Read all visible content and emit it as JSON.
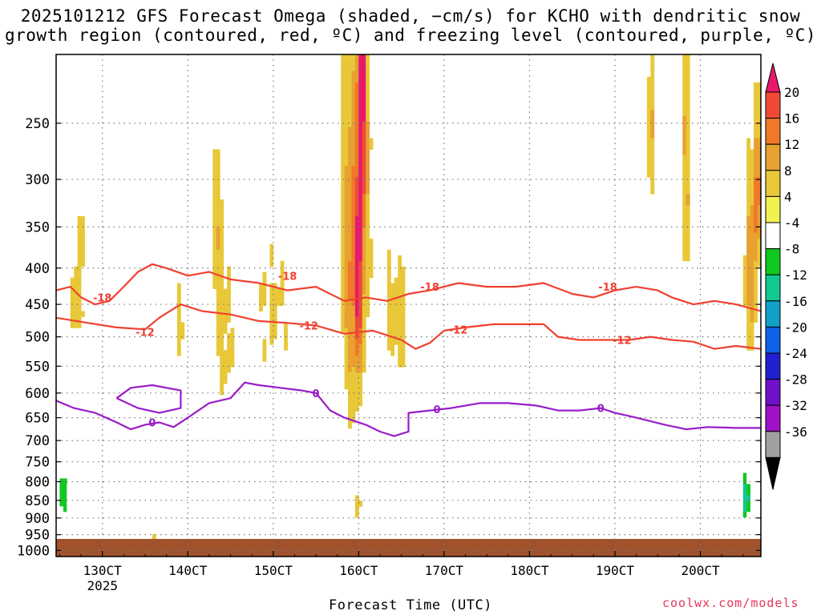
{
  "title": {
    "line1": "2025101212 GFS Forecast Omega (shaded, −cm/s) for KCHO with dendritic snow",
    "line2": "growth region (contoured, red, ºC) and freezing level (contoured, purple, ºC)"
  },
  "credit": "coolwx.com/models",
  "colors": {
    "snow_growth_contour": "#f04030",
    "freezing_level_contour": "#9a1cc8",
    "ground": "#a0522d",
    "grid": "#777777"
  },
  "chart_data": {
    "type": "heatmap",
    "title": "2025101212 GFS Forecast Omega (shaded, −cm/s) for KCHO with dendritic snow growth region (contoured, red, ºC) and freezing level (contoured, purple, ºC)",
    "xlabel": "Forecast Time (UTC)",
    "ylabel": "",
    "x_unit": "hours since 12z 12 Oct 2025",
    "xlim": [
      -1,
      197
    ],
    "ylim_hpa": [
      1020,
      200
    ],
    "y_scale": "log",
    "x_ticks": [
      {
        "label": "130CT",
        "sublabel": "2025",
        "x": 12
      },
      {
        "label": "140CT",
        "x": 36
      },
      {
        "label": "150CT",
        "x": 60
      },
      {
        "label": "160CT",
        "x": 84
      },
      {
        "label": "170CT",
        "x": 108
      },
      {
        "label": "180CT",
        "x": 132
      },
      {
        "label": "190CT",
        "x": 156
      },
      {
        "label": "200CT",
        "x": 180
      }
    ],
    "y_ticks": [
      1000,
      950,
      900,
      850,
      800,
      750,
      700,
      650,
      600,
      550,
      500,
      450,
      400,
      350,
      300,
      250
    ],
    "grid": true,
    "colorbar": {
      "levels": [
        20,
        16,
        12,
        8,
        4,
        -4,
        -8,
        -12,
        -16,
        -20,
        -24,
        -28,
        -32,
        -36
      ],
      "colors": [
        "#e8186c",
        "#f04a36",
        "#f07828",
        "#e8a030",
        "#e8c838",
        "#f0f050",
        "#ffffff",
        "#10c820",
        "#10c890",
        "#10a0c8",
        "#1060e8",
        "#2020d0",
        "#7010c8",
        "#a010c8",
        "#a0a0a0",
        "#000000"
      ]
    },
    "omega_blobs": [
      {
        "x": 84,
        "p": 330,
        "rx": 5.5,
        "rp": 260,
        "v": 6
      },
      {
        "x": 82,
        "p": 420,
        "rx": 2.5,
        "rp": 220,
        "v": 8
      },
      {
        "x": 85,
        "p": 220,
        "rx": 1.2,
        "rp": 120,
        "v": 18
      },
      {
        "x": 84,
        "p": 420,
        "rx": 1,
        "rp": 120,
        "v": 14
      },
      {
        "x": 95,
        "p": 470,
        "rx": 4,
        "rp": 120,
        "v": 6
      },
      {
        "x": 60,
        "p": 460,
        "rx": 7,
        "rp": 130,
        "v": 4.5
      },
      {
        "x": 44,
        "p": 340,
        "rx": 2,
        "rp": 80,
        "v": 6
      },
      {
        "x": 46,
        "p": 500,
        "rx": 4,
        "rp": 150,
        "v": 5
      },
      {
        "x": 34,
        "p": 470,
        "rx": 2,
        "rp": 80,
        "v": 5
      },
      {
        "x": 6,
        "p": 380,
        "rx": 2,
        "rp": 130,
        "v": 4.5
      },
      {
        "x": 4,
        "p": 460,
        "rx": 1.5,
        "rp": 60,
        "v": 5
      },
      {
        "x": 26,
        "p": 970,
        "rx": 7,
        "rp": 20,
        "v": 5
      },
      {
        "x": 84,
        "p": 870,
        "rx": 1,
        "rp": 50,
        "v": 6
      },
      {
        "x": 124,
        "p": 860,
        "rx": 1,
        "rp": 15,
        "v": 5
      },
      {
        "x": 176,
        "p": 290,
        "rx": 1,
        "rp": 120,
        "v": 10
      },
      {
        "x": 166,
        "p": 260,
        "rx": 1,
        "rp": 60,
        "v": 10
      },
      {
        "x": 194,
        "p": 400,
        "rx": 1.6,
        "rp": 120,
        "v": 12
      },
      {
        "x": 196,
        "p": 310,
        "rx": 0.8,
        "rp": 80,
        "v": 16
      },
      {
        "x": 18,
        "p": 250,
        "rx": 1,
        "rp": 80,
        "v": -5
      },
      {
        "x": 26,
        "p": 440,
        "rx": 1.5,
        "rp": 60,
        "v": -5
      },
      {
        "x": 32,
        "p": 640,
        "rx": 0.7,
        "rp": 50,
        "v": -10
      },
      {
        "x": 1,
        "p": 820,
        "rx": 1.5,
        "rp": 70,
        "v": -10
      },
      {
        "x": 4,
        "p": 870,
        "rx": 5,
        "rp": 50,
        "v": -5
      },
      {
        "x": 84,
        "p": 760,
        "rx": 2,
        "rp": 40,
        "v": -6
      },
      {
        "x": 68,
        "p": 940,
        "rx": 1,
        "rp": 20,
        "v": -5
      },
      {
        "x": 138,
        "p": 360,
        "rx": 1,
        "rp": 60,
        "v": -6
      },
      {
        "x": 160,
        "p": 300,
        "rx": 1,
        "rp": 100,
        "v": -6
      },
      {
        "x": 192,
        "p": 780,
        "rx": 2,
        "rp": 120,
        "v": -7
      },
      {
        "x": 193,
        "p": 850,
        "rx": 0.8,
        "rp": 60,
        "v": -14
      },
      {
        "x": 179,
        "p": 820,
        "rx": 1,
        "rp": 120,
        "v": -6
      },
      {
        "x": 185,
        "p": 210,
        "rx": 1,
        "rp": 40,
        "v": -7
      },
      {
        "x": 137,
        "p": 690,
        "rx": 0.5,
        "rp": 10,
        "v": -6
      },
      {
        "x": 156,
        "p": 960,
        "rx": 0.6,
        "rp": 12,
        "v": -6
      }
    ],
    "contours": [
      {
        "label": "-18",
        "color": "red",
        "points": [
          [
            -1,
            430
          ],
          [
            3,
            425
          ],
          [
            6,
            440
          ],
          [
            10,
            450
          ],
          [
            14,
            445
          ],
          [
            18,
            425
          ],
          [
            22,
            405
          ],
          [
            26,
            395
          ],
          [
            30,
            400
          ],
          [
            36,
            410
          ],
          [
            42,
            405
          ],
          [
            48,
            415
          ],
          [
            56,
            420
          ],
          [
            64,
            430
          ],
          [
            72,
            425
          ],
          [
            80,
            445
          ],
          [
            86,
            440
          ],
          [
            92,
            445
          ],
          [
            98,
            435
          ],
          [
            104,
            430
          ],
          [
            112,
            420
          ],
          [
            120,
            425
          ],
          [
            128,
            425
          ],
          [
            136,
            420
          ],
          [
            144,
            435
          ],
          [
            150,
            440
          ],
          [
            156,
            430
          ],
          [
            162,
            425
          ],
          [
            168,
            430
          ],
          [
            172,
            440
          ],
          [
            178,
            450
          ],
          [
            184,
            445
          ],
          [
            190,
            450
          ],
          [
            197,
            460
          ]
        ],
        "labels_at": [
          [
            12,
            440
          ],
          [
            64,
            410
          ],
          [
            104,
            425
          ],
          [
            154,
            425
          ]
        ]
      },
      {
        "label": "-12",
        "color": "red",
        "points": [
          [
            -1,
            470
          ],
          [
            8,
            478
          ],
          [
            16,
            485
          ],
          [
            24,
            488
          ],
          [
            28,
            470
          ],
          [
            34,
            450
          ],
          [
            40,
            460
          ],
          [
            48,
            465
          ],
          [
            56,
            475
          ],
          [
            64,
            478
          ],
          [
            72,
            482
          ],
          [
            80,
            495
          ],
          [
            88,
            490
          ],
          [
            96,
            505
          ],
          [
            100,
            520
          ],
          [
            104,
            510
          ],
          [
            108,
            490
          ],
          [
            114,
            485
          ],
          [
            122,
            480
          ],
          [
            130,
            480
          ],
          [
            136,
            480
          ],
          [
            140,
            500
          ],
          [
            146,
            505
          ],
          [
            152,
            505
          ],
          [
            160,
            505
          ],
          [
            166,
            500
          ],
          [
            172,
            505
          ],
          [
            178,
            508
          ],
          [
            184,
            520
          ],
          [
            190,
            515
          ],
          [
            197,
            520
          ]
        ],
        "labels_at": [
          [
            24,
            492
          ],
          [
            70,
            482
          ],
          [
            112,
            488
          ],
          [
            158,
            505
          ]
        ]
      },
      {
        "label": "0",
        "color": "purple",
        "points": [
          [
            -1,
            615
          ],
          [
            4,
            630
          ],
          [
            10,
            640
          ],
          [
            16,
            660
          ],
          [
            20,
            675
          ],
          [
            24,
            665
          ],
          [
            28,
            660
          ],
          [
            32,
            670
          ],
          [
            36,
            650
          ],
          [
            42,
            620
          ],
          [
            48,
            610
          ],
          [
            52,
            580
          ],
          [
            56,
            585
          ],
          [
            62,
            590
          ],
          [
            68,
            595
          ],
          [
            72,
            600
          ],
          [
            76,
            635
          ],
          [
            80,
            650
          ],
          [
            86,
            665
          ],
          [
            90,
            680
          ],
          [
            94,
            690
          ],
          [
            98,
            680
          ],
          [
            98,
            640
          ],
          [
            104,
            635
          ],
          [
            110,
            630
          ],
          [
            118,
            620
          ],
          [
            126,
            620
          ],
          [
            134,
            625
          ],
          [
            140,
            635
          ],
          [
            146,
            635
          ],
          [
            152,
            630
          ],
          [
            156,
            640
          ],
          [
            162,
            650
          ],
          [
            170,
            665
          ],
          [
            176,
            675
          ],
          [
            182,
            670
          ],
          [
            190,
            672
          ],
          [
            197,
            672
          ]
        ],
        "labels_at": [
          [
            26,
            660
          ],
          [
            72,
            600
          ],
          [
            106,
            632
          ],
          [
            152,
            630
          ]
        ]
      },
      {
        "label": "0-closed",
        "color": "purple",
        "points": [
          [
            16,
            610
          ],
          [
            20,
            590
          ],
          [
            26,
            585
          ],
          [
            34,
            595
          ],
          [
            34,
            630
          ],
          [
            28,
            640
          ],
          [
            22,
            630
          ],
          [
            16,
            610
          ]
        ],
        "labels_at": []
      }
    ]
  }
}
